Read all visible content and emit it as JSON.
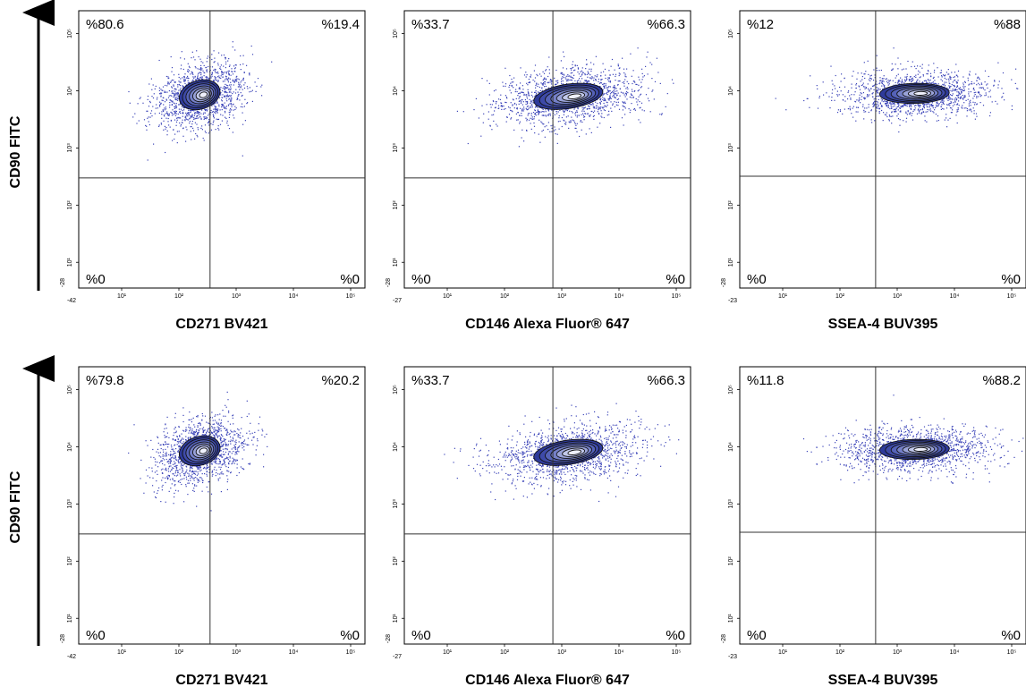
{
  "colors": {
    "dots": "#3b44b8",
    "contour_outer": "#2e3a9a",
    "contour_inner": "#eef0fb",
    "gate_line": "#333333",
    "frame": "#000000"
  },
  "row_axis_labels": [
    "CD90 FITC",
    "CD90 FITC"
  ],
  "chart_data": [
    {
      "type": "scatter",
      "row": 0,
      "col": 0,
      "xlabel": "CD271 BV421",
      "ylabel": "CD90 FITC",
      "x_ticks": [
        "10¹",
        "10²",
        "10³",
        "10⁴",
        "10⁵"
      ],
      "x_min_label": "-42",
      "y_ticks": [
        "10¹",
        "10²",
        "10³",
        "10⁴",
        "10⁵"
      ],
      "y_min_label": "-28",
      "gate": {
        "x": 350,
        "y": 300
      },
      "quadrants": {
        "top_left": "%80.6",
        "top_right": "%19.4",
        "bottom_left": "%0",
        "bottom_right": "%0"
      },
      "population": {
        "center": [
          230,
          8500
        ],
        "spread_x": 0.27,
        "spread_y": 0.2,
        "tilt": 0.6
      }
    },
    {
      "type": "scatter",
      "row": 0,
      "col": 1,
      "xlabel": "CD146 Alexa Fluor® 647",
      "ylabel": "CD90 FITC",
      "x_ticks": [
        "10¹",
        "10²",
        "10³",
        "10⁴",
        "10⁵"
      ],
      "x_min_label": "-27",
      "y_ticks": [
        "10¹",
        "10²",
        "10³",
        "10⁴",
        "10⁵"
      ],
      "y_min_label": "-28",
      "gate": {
        "x": 700,
        "y": 300
      },
      "quadrants": {
        "top_left": "%33.7",
        "top_right": "%66.3",
        "bottom_left": "%0",
        "bottom_right": "%0"
      },
      "population": {
        "center": [
          1300,
          8000
        ],
        "spread_x": 0.45,
        "spread_y": 0.17,
        "tilt": 0.3
      }
    },
    {
      "type": "scatter",
      "row": 0,
      "col": 2,
      "xlabel": "SSEA-4 BUV395",
      "ylabel": "CD90 FITC",
      "x_ticks": [
        "10¹",
        "10²",
        "10³",
        "10⁴",
        "10⁵"
      ],
      "x_min_label": "-23",
      "y_ticks": [
        "10¹",
        "10²",
        "10³",
        "10⁴",
        "10⁵"
      ],
      "y_min_label": "-28",
      "gate": {
        "x": 420,
        "y": 320
      },
      "quadrants": {
        "top_left": "%12",
        "top_right": "%88",
        "bottom_left": "%0",
        "bottom_right": "%0"
      },
      "population": {
        "center": [
          2000,
          9000
        ],
        "spread_x": 0.45,
        "spread_y": 0.14,
        "tilt": 0.05
      }
    },
    {
      "type": "scatter",
      "row": 1,
      "col": 0,
      "xlabel": "CD271 BV421",
      "ylabel": "CD90 FITC",
      "x_ticks": [
        "10¹",
        "10²",
        "10³",
        "10⁴",
        "10⁵"
      ],
      "x_min_label": "-42",
      "y_ticks": [
        "10¹",
        "10²",
        "10³",
        "10⁴",
        "10⁵"
      ],
      "y_min_label": "-28",
      "gate": {
        "x": 350,
        "y": 300
      },
      "quadrants": {
        "top_left": "%79.8",
        "top_right": "%20.2",
        "bottom_left": "%0",
        "bottom_right": "%0"
      },
      "population": {
        "center": [
          230,
          8500
        ],
        "spread_x": 0.27,
        "spread_y": 0.2,
        "tilt": 0.6
      }
    },
    {
      "type": "scatter",
      "row": 1,
      "col": 1,
      "xlabel": "CD146 Alexa Fluor® 647",
      "ylabel": "CD90 FITC",
      "x_ticks": [
        "10¹",
        "10²",
        "10³",
        "10⁴",
        "10⁵"
      ],
      "x_min_label": "-27",
      "y_ticks": [
        "10¹",
        "10²",
        "10³",
        "10⁴",
        "10⁵"
      ],
      "y_min_label": "-28",
      "gate": {
        "x": 700,
        "y": 300
      },
      "quadrants": {
        "top_left": "%33.7",
        "top_right": "%66.3",
        "bottom_left": "%0",
        "bottom_right": "%0"
      },
      "population": {
        "center": [
          1300,
          8000
        ],
        "spread_x": 0.45,
        "spread_y": 0.17,
        "tilt": 0.3
      }
    },
    {
      "type": "scatter",
      "row": 1,
      "col": 2,
      "xlabel": "SSEA-4 BUV395",
      "ylabel": "CD90 FITC",
      "x_ticks": [
        "10¹",
        "10²",
        "10³",
        "10⁴",
        "10⁵"
      ],
      "x_min_label": "-23",
      "y_ticks": [
        "10¹",
        "10²",
        "10³",
        "10⁴",
        "10⁵"
      ],
      "y_min_label": "-28",
      "gate": {
        "x": 420,
        "y": 320
      },
      "quadrants": {
        "top_left": "%11.8",
        "top_right": "%88.2",
        "bottom_left": "%0",
        "bottom_right": "%0"
      },
      "population": {
        "center": [
          2000,
          9000
        ],
        "spread_x": 0.45,
        "spread_y": 0.14,
        "tilt": 0.05
      }
    }
  ]
}
